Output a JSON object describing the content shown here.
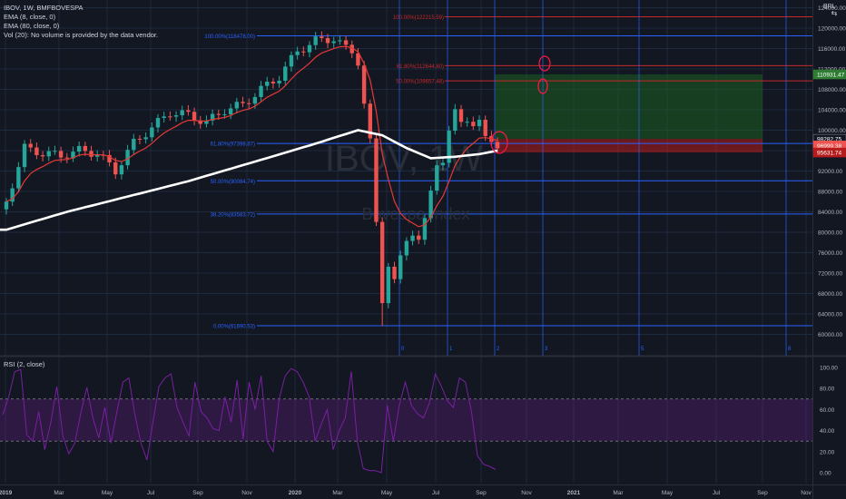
{
  "legend": {
    "symbol": "IBOV, 1W, BMFBOVESPA",
    "ema8": "EMA (8, close, 0)",
    "ema80": "EMA (80, close, 0)",
    "vol": "Vol (20): No volume is provided by the data vendor."
  },
  "rsi_title": "RSI (2, close)",
  "currency": "BRL",
  "watermark": {
    "line1": "IBOV, 1W",
    "line2": "Bovespa Index"
  },
  "colors": {
    "background": "#131722",
    "grid": "#1e2a3e",
    "up": "#26a69a",
    "down": "#ef5350",
    "ema8": "#e53935",
    "ema80": "#ffffff",
    "fib_blue": "#2962ff",
    "fib_red": "#c62828",
    "rsi": "#7b1fa2",
    "target_zone": "#1b5e20",
    "stop_zone": "#b71c1c"
  },
  "chart_data": [
    {
      "type": "candlestick",
      "title": "IBOV, 1W, BMFBOVESPA",
      "ylim": [
        58000,
        126000
      ],
      "y_ticks": [
        "124000.00",
        "120000.00",
        "116000.00",
        "112000.00",
        "108000.00",
        "104000.00",
        "100000.00",
        "96000.00",
        "92000.00",
        "88000.00",
        "84000.00",
        "80000.00",
        "76000.00",
        "72000.00",
        "68000.00",
        "64000.00",
        "60000.00"
      ],
      "x_ticks": [
        "2019",
        "Mar",
        "May",
        "Jul",
        "Sep",
        "Nov",
        "2020",
        "Mar",
        "May",
        "Jul",
        "Sep",
        "Nov",
        "2021",
        "Mar",
        "May",
        "Jul",
        "Sep",
        "Nov"
      ],
      "close_anchors": [
        [
          0,
          86000
        ],
        [
          3,
          96500
        ],
        [
          6,
          95500
        ],
        [
          9,
          95000
        ],
        [
          12,
          96000
        ],
        [
          15,
          95500
        ],
        [
          18,
          92000
        ],
        [
          21,
          97500
        ],
        [
          24,
          100500
        ],
        [
          27,
          103500
        ],
        [
          30,
          103000
        ],
        [
          33,
          101500
        ],
        [
          36,
          104000
        ],
        [
          39,
          105000
        ],
        [
          42,
          108000
        ],
        [
          45,
          110500
        ],
        [
          48,
          115500
        ],
        [
          51,
          117500
        ],
        [
          54,
          118000
        ],
        [
          56,
          116000
        ],
        [
          57,
          115500
        ],
        [
          58,
          113500
        ],
        [
          59,
          105000
        ],
        [
          60,
          97500
        ],
        [
          61,
          82000
        ],
        [
          62,
          67000
        ],
        [
          63,
          73500
        ],
        [
          64,
          70000
        ],
        [
          65,
          75000
        ],
        [
          66,
          79000
        ],
        [
          67,
          80000
        ],
        [
          68,
          78000
        ],
        [
          69,
          82000
        ],
        [
          70,
          88500
        ],
        [
          71,
          94000
        ],
        [
          72,
          93500
        ],
        [
          73,
          99000
        ],
        [
          74,
          104000
        ],
        [
          75,
          102500
        ],
        [
          76,
          102000
        ],
        [
          77,
          100000
        ],
        [
          78,
          101500
        ],
        [
          79,
          99500
        ],
        [
          80,
          98400
        ],
        [
          81,
          96000
        ]
      ],
      "ema80_anchors": [
        [
          0,
          80500
        ],
        [
          10,
          84000
        ],
        [
          20,
          87000
        ],
        [
          30,
          90000
        ],
        [
          40,
          93500
        ],
        [
          50,
          97000
        ],
        [
          58,
          100000
        ],
        [
          62,
          99000
        ],
        [
          66,
          96500
        ],
        [
          70,
          94500
        ],
        [
          74,
          94800
        ],
        [
          78,
          95300
        ],
        [
          81,
          96000
        ]
      ],
      "price_labels": [
        {
          "value": 110931.47,
          "text": "110931.47",
          "color": "#2e7d32"
        },
        {
          "value": 98282.75,
          "text": "98282.75",
          "color": "#131722"
        },
        {
          "value": 96999.38,
          "text": "96999.38",
          "color": "#ef5350"
        },
        {
          "value": 95631.74,
          "text": "95631.74",
          "color": "#b71c1c"
        }
      ],
      "fib_up": [
        {
          "label": "100.00%(118478.00)",
          "value": 118478
        },
        {
          "label": "61.80%(97398.87)",
          "value": 97398.87
        },
        {
          "label": "50.00%(90084.74)",
          "value": 90084.74
        },
        {
          "label": "38.20%(83583.72)",
          "value": 83583.72
        },
        {
          "label": "0.00%(61690.53)",
          "value": 61690.53
        }
      ],
      "fib_ext": [
        {
          "label": "100.00%(122215.59)",
          "value": 122215.59
        },
        {
          "label": "61.80%(112644.80)",
          "value": 112644.8
        },
        {
          "label": "50.00%(109657.48)",
          "value": 109657.48
        }
      ],
      "fib_time_labels": [
        "0",
        "1",
        "2",
        "3",
        "5",
        "8"
      ],
      "target_zone": [
        98282.75,
        110931.47
      ],
      "stop_zone": [
        95631.74,
        98282.75
      ]
    },
    {
      "type": "line",
      "title": "RSI (2, close)",
      "ylim": [
        -8,
        108
      ],
      "y_ticks": [
        "100.00",
        "80.00",
        "60.00",
        "40.00",
        "20.00",
        "0.00"
      ],
      "bands": [
        70,
        30
      ],
      "values": [
        55,
        72,
        96,
        98,
        36,
        30,
        58,
        22,
        48,
        82,
        35,
        18,
        28,
        57,
        81,
        52,
        33,
        62,
        28,
        58,
        86,
        90,
        55,
        28,
        12,
        48,
        82,
        90,
        94,
        62,
        48,
        35,
        86,
        58,
        52,
        42,
        40,
        72,
        48,
        88,
        32,
        86,
        60,
        92,
        30,
        20,
        70,
        92,
        99,
        96,
        86,
        72,
        30,
        46,
        60,
        22,
        40,
        52,
        96,
        30,
        4,
        2,
        2,
        0,
        64,
        30,
        64,
        86,
        64,
        56,
        52,
        66,
        94,
        82,
        68,
        62,
        90,
        86,
        58,
        16,
        8,
        6,
        3
      ]
    }
  ]
}
